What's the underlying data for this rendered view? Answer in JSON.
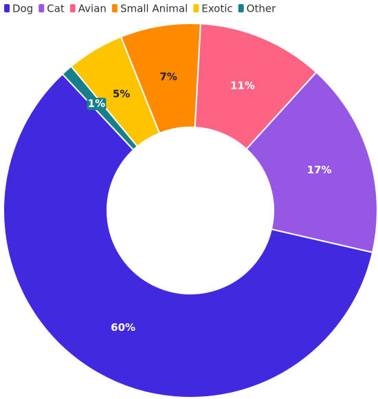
{
  "chart_data": {
    "type": "pie",
    "categories": [
      "Dog",
      "Cat",
      "Avian",
      "Small Animal",
      "Exotic",
      "Other"
    ],
    "values": [
      60,
      17,
      11,
      7,
      5,
      1
    ],
    "value_labels": [
      "60%",
      "17%",
      "11%",
      "7%",
      "5%",
      "1%"
    ],
    "colors": [
      "#4129e0",
      "#9657e4",
      "#ff6384",
      "#ff8a00",
      "#ffc400",
      "#177f8b"
    ],
    "legend": "top"
  }
}
